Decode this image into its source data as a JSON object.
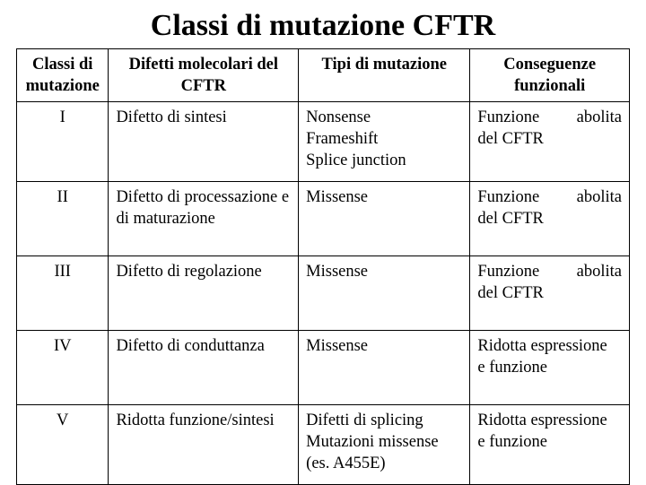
{
  "title": "Classi di mutazione CFTR",
  "columns": {
    "c1": "Classi di mutazione",
    "c2": "Difetti molecolari del CFTR",
    "c3": "Tipi di mutazione",
    "c4": "Conseguenze funzionali"
  },
  "rows": {
    "r1": {
      "class": "I",
      "defect": "Difetto di sintesi",
      "types_l1": "Nonsense",
      "types_l2": "Frameshift",
      "types_l3": "Splice junction",
      "cons_left_l1": "Funzione",
      "cons_right_l1": "abolita",
      "cons_left_l2": "del CFTR"
    },
    "r2": {
      "class": "II",
      "defect": "Difetto di processazione e di maturazione",
      "types_l1": "Missense",
      "cons_left_l1": "Funzione",
      "cons_right_l1": "abolita",
      "cons_left_l2": "del CFTR"
    },
    "r3": {
      "class": "III",
      "defect": "Difetto di regolazione",
      "types_l1": "Missense",
      "cons_left_l1": "Funzione",
      "cons_right_l1": "abolita",
      "cons_left_l2": "del CFTR"
    },
    "r4": {
      "class": "IV",
      "defect": "Difetto di conduttanza",
      "types_l1": "Missense",
      "cons_l1": "Ridotta espressione",
      "cons_l2": "e funzione"
    },
    "r5": {
      "class": "V",
      "defect": "Ridotta funzione/sintesi",
      "types_l1": "Difetti di splicing",
      "types_l2": "Mutazioni missense",
      "types_l3": "(es. A455E)",
      "cons_l1": "Ridotta espressione",
      "cons_l2": "e funzione"
    }
  }
}
